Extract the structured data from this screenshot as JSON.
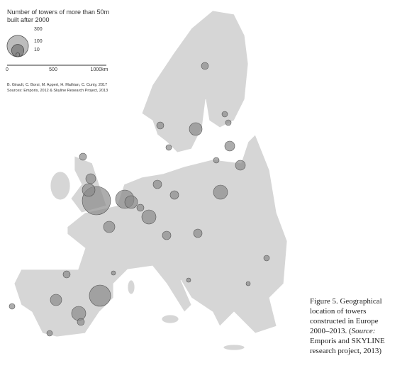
{
  "legend": {
    "title_lines": [
      "Number of towers of more than 50m",
      "built after 2000"
    ],
    "sizes": [
      300,
      100,
      10
    ]
  },
  "scale_bar": {
    "labels": [
      "0",
      "500",
      "1000km"
    ]
  },
  "credits": [
    "B. Girault, C. Borsi, M. Appert, H. Mathian, C. Cunty, 2017",
    "Sources: Emporis, 2012 & Skyline Research Project, 2013"
  ],
  "caption": {
    "lines": [
      "Figure 5. Geographical",
      "location of towers",
      "constructed in Europe",
      "2000–2013. ("
    ],
    "source_label": "Source:",
    "after_source": [
      "Emporis and SKYLINE",
      "research project, 2013)"
    ]
  }
}
